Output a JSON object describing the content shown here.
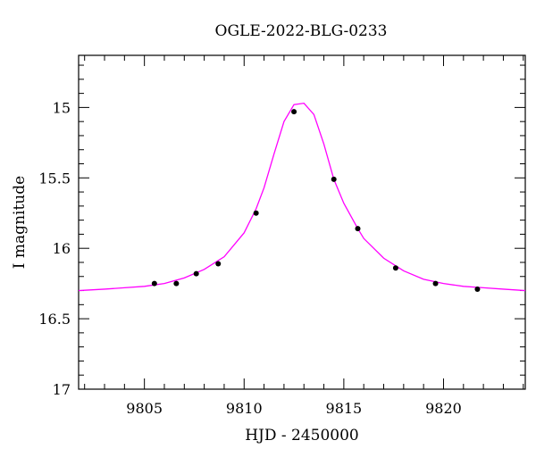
{
  "chart_data": {
    "type": "scatter",
    "title": "OGLE-2022-BLG-0233",
    "xlabel": "HJD - 2450000",
    "ylabel": "I magnitude",
    "xlim": [
      9801.7,
      9824.1
    ],
    "ylim": [
      17.0,
      14.63
    ],
    "y_inverted": true,
    "x_ticks": [
      9805,
      9810,
      9815,
      9820
    ],
    "y_ticks": [
      15,
      15.5,
      16,
      16.5,
      17
    ],
    "x_tick_labels": [
      "9805",
      "9810",
      "9815",
      "9820"
    ],
    "y_tick_labels": [
      "15",
      "15.5",
      "16",
      "16.5",
      "17"
    ],
    "grid": false,
    "legend": "none",
    "series": [
      {
        "kind": "points",
        "color": "#000000",
        "x": [
          9805.5,
          9806.6,
          9807.6,
          9808.7,
          9810.6,
          9812.5,
          9814.5,
          9815.7,
          9817.6,
          9819.6,
          9821.7
        ],
        "y": [
          16.25,
          16.25,
          16.18,
          16.11,
          15.75,
          15.03,
          15.51,
          15.86,
          16.14,
          16.25,
          16.29
        ]
      },
      {
        "kind": "model-curve",
        "color": "#ff00ff",
        "x": [
          9801.7,
          9803.0,
          9804.0,
          9805.0,
          9806.0,
          9807.0,
          9808.0,
          9809.0,
          9810.0,
          9810.6,
          9811.0,
          9811.5,
          9812.0,
          9812.5,
          9813.0,
          9813.5,
          9814.0,
          9814.5,
          9815.0,
          9815.7,
          9816.0,
          9817.0,
          9818.0,
          9819.0,
          9820.0,
          9821.0,
          9822.0,
          9823.0,
          9824.1
        ],
        "y": [
          16.3,
          16.29,
          16.28,
          16.27,
          16.25,
          16.21,
          16.15,
          16.06,
          15.89,
          15.72,
          15.57,
          15.33,
          15.1,
          14.98,
          14.97,
          15.05,
          15.26,
          15.51,
          15.68,
          15.86,
          15.93,
          16.07,
          16.16,
          16.22,
          16.25,
          16.27,
          16.28,
          16.29,
          16.3
        ]
      }
    ]
  }
}
